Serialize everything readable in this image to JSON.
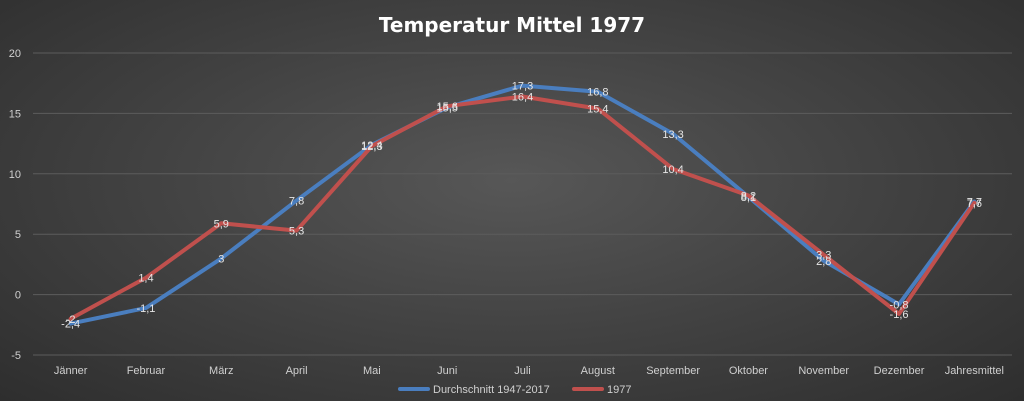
{
  "chart_data": {
    "type": "line",
    "title": "Temperatur Mittel 1977",
    "categories": [
      "Jänner",
      "Februar",
      "März",
      "April",
      "Mai",
      "Juni",
      "Juli",
      "August",
      "September",
      "Oktober",
      "November",
      "Dezember",
      "Jahresmittel"
    ],
    "series": [
      {
        "name": "Durchschnitt 1947-2017",
        "color": "#4a7ebf",
        "values": [
          -2.4,
          -1.1,
          3,
          7.8,
          12.4,
          15.5,
          17.3,
          16.8,
          13.3,
          8.1,
          2.8,
          -0.8,
          7.7
        ],
        "labels": [
          "-2,4",
          "-1,1",
          "3",
          "7,8",
          "12,4",
          "15,5",
          "17,3",
          "16,8",
          "13,3",
          "8,1",
          "2,8",
          "-0,8",
          "7,7"
        ]
      },
      {
        "name": "1977",
        "color": "#c0504d",
        "values": [
          -2,
          1.4,
          5.9,
          5.3,
          12.3,
          15.6,
          16.4,
          15.4,
          10.4,
          8.2,
          3.3,
          -1.6,
          7.6
        ],
        "labels": [
          "-2",
          "1,4",
          "5,9",
          "5,3",
          "12,3",
          "15,6",
          "16,4",
          "15,4",
          "10,4",
          "8,2",
          "3,3",
          "-1,6",
          "7,6"
        ]
      }
    ],
    "ylim": [
      -5,
      20
    ],
    "yticks": [
      -5,
      0,
      5,
      10,
      15,
      20
    ],
    "xlabel": "",
    "ylabel": "",
    "grid": true,
    "legend_position": "bottom"
  }
}
